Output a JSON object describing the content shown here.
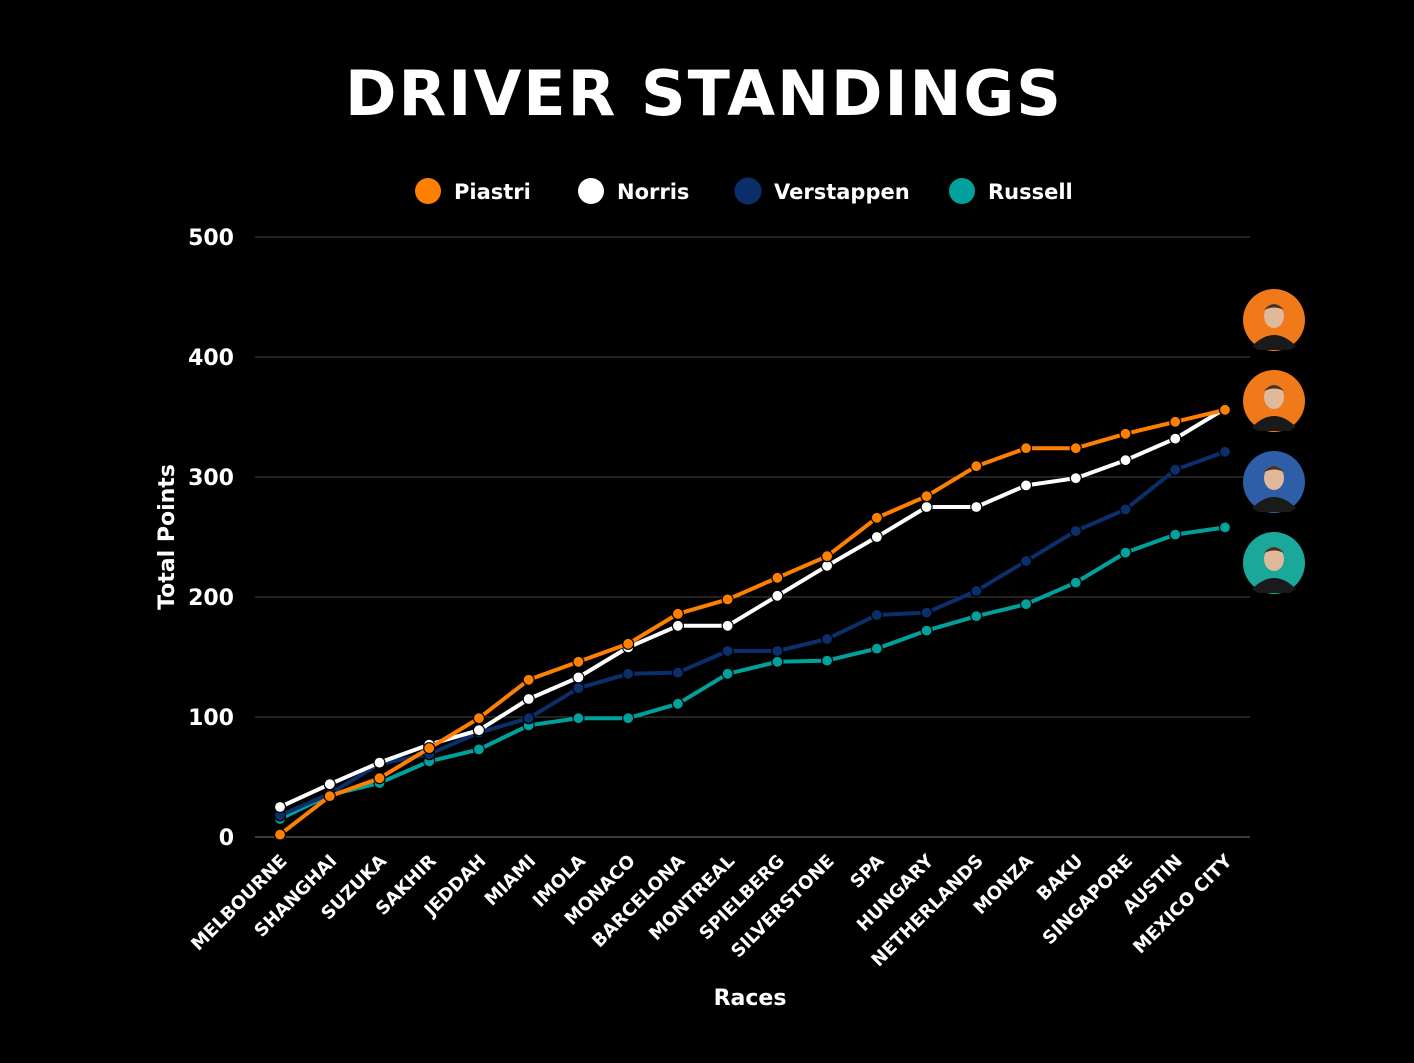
{
  "chart_data": {
    "type": "line",
    "title": "DRIVER STANDINGS",
    "xlabel": "Races",
    "ylabel": "Total Points",
    "ylim": [
      0,
      500
    ],
    "yticks": [
      0,
      100,
      200,
      300,
      400,
      500
    ],
    "grid": true,
    "legend": "top",
    "categories": [
      "MELBOURNE",
      "SHANGHAI",
      "SUZUKA",
      "SAKHIR",
      "JEDDAH",
      "MIAMI",
      "IMOLA",
      "MONACO",
      "BARCELONA",
      "MONTREAL",
      "SPIELBERG",
      "SILVERSTONE",
      "SPA",
      "HUNGARY",
      "NETHERLANDS",
      "MONZA",
      "BAKU",
      "SINGAPORE",
      "AUSTIN",
      "MEXICO CITY"
    ],
    "series": [
      {
        "name": "Piastri",
        "color": "#FF8000",
        "values": [
          2,
          34,
          49,
          74,
          99,
          131,
          146,
          161,
          186,
          198,
          216,
          234,
          266,
          284,
          309,
          324,
          324,
          336,
          346,
          356
        ]
      },
      {
        "name": "Norris",
        "color": "#FFFFFF",
        "values": [
          25,
          44,
          62,
          77,
          89,
          115,
          133,
          158,
          176,
          176,
          201,
          226,
          250,
          275,
          275,
          293,
          299,
          314,
          332,
          357
        ]
      },
      {
        "name": "Verstappen",
        "color": "#0A2F6B",
        "values": [
          18,
          36,
          61,
          69,
          87,
          99,
          124,
          136,
          137,
          155,
          155,
          165,
          185,
          187,
          205,
          230,
          255,
          273,
          306,
          321
        ]
      },
      {
        "name": "Russell",
        "color": "#00A19C",
        "values": [
          15,
          35,
          45,
          63,
          73,
          93,
          99,
          99,
          111,
          136,
          146,
          147,
          157,
          172,
          184,
          194,
          212,
          237,
          252,
          258
        ]
      }
    ],
    "avatars": [
      {
        "driver": "Norris",
        "color": "#F07A1A",
        "icon": "driver-avatar-icon"
      },
      {
        "driver": "Piastri",
        "color": "#F07A1A",
        "icon": "driver-avatar-icon"
      },
      {
        "driver": "Verstappen",
        "color": "#2E5EA8",
        "icon": "driver-avatar-icon"
      },
      {
        "driver": "Russell",
        "color": "#19A89A",
        "icon": "driver-avatar-icon"
      }
    ]
  }
}
